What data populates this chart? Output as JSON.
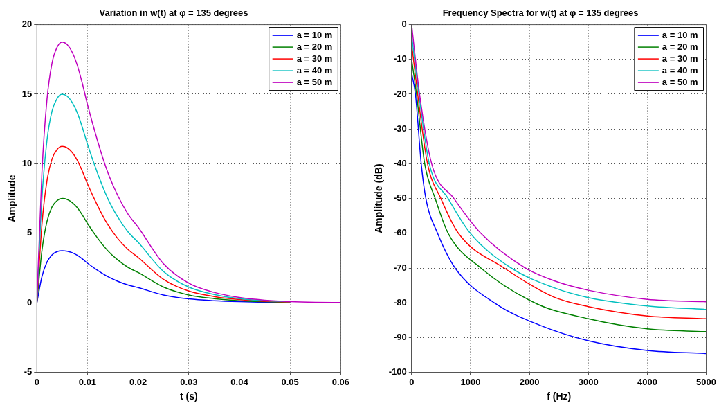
{
  "chart_data": [
    {
      "type": "line",
      "title": "Variation in w(t) at φ = 135 degrees",
      "xlabel": "t (s)",
      "ylabel": "Amplitude",
      "x": [
        0,
        0.001,
        0.002,
        0.003,
        0.004,
        0.005,
        0.006,
        0.007,
        0.008,
        0.009,
        0.01,
        0.012,
        0.014,
        0.016,
        0.018,
        0.02,
        0.025,
        0.03,
        0.035,
        0.04,
        0.045,
        0.05,
        0.055,
        0.06
      ],
      "series": [
        {
          "name": "a = 10 m",
          "color": "#0000ff",
          "values": [
            0,
            1.88,
            2.93,
            3.45,
            3.68,
            3.75,
            3.71,
            3.6,
            3.41,
            3.15,
            2.85,
            2.33,
            1.88,
            1.54,
            1.28,
            1.09,
            0.56,
            0.28,
            0.15,
            0.08,
            0.04,
            0.02,
            null,
            null
          ]
        },
        {
          "name": "a = 20 m",
          "color": "#008000",
          "values": [
            0,
            3.75,
            5.85,
            6.9,
            7.35,
            7.5,
            7.43,
            7.2,
            6.83,
            6.3,
            5.7,
            4.65,
            3.75,
            3.08,
            2.55,
            2.18,
            1.13,
            0.56,
            0.3,
            0.15,
            0.08,
            0.04,
            null,
            null
          ]
        },
        {
          "name": "a = 30 m",
          "color": "#ff0000",
          "values": [
            0,
            5.63,
            8.78,
            10.35,
            11.03,
            11.25,
            11.14,
            10.8,
            10.24,
            9.45,
            8.55,
            6.98,
            5.63,
            4.61,
            3.83,
            3.26,
            1.69,
            0.84,
            0.45,
            0.23,
            0.11,
            0.06,
            null,
            null
          ]
        },
        {
          "name": "a = 40 m",
          "color": "#00bfbf",
          "values": [
            0,
            7.5,
            11.7,
            13.8,
            14.7,
            15,
            14.85,
            14.4,
            13.65,
            12.6,
            11.4,
            9.3,
            7.5,
            6.15,
            5.1,
            4.35,
            2.25,
            1.13,
            0.6,
            0.3,
            0.15,
            0.08,
            null,
            null
          ]
        },
        {
          "name": "a = 50 m",
          "color": "#bf00bf",
          "values": [
            0,
            9.38,
            14.63,
            17.25,
            18.38,
            18.75,
            18.56,
            18,
            17.06,
            15.75,
            14.25,
            11.63,
            9.38,
            7.69,
            6.38,
            5.44,
            2.81,
            1.41,
            0.75,
            0.38,
            0.19,
            0.09,
            0.04,
            0.02
          ]
        }
      ],
      "xlim": [
        0,
        0.06
      ],
      "xticks": [
        0,
        0.01,
        0.02,
        0.03,
        0.04,
        0.05,
        0.06
      ],
      "ylim": [
        -5,
        20
      ],
      "yticks": [
        -5,
        0,
        5,
        10,
        15,
        20
      ],
      "grid": true,
      "legend": "top right",
      "line_style": "solid",
      "marker": "none"
    },
    {
      "type": "line",
      "title": "Frequency Spectra for w(t) at φ = 135 degrees",
      "xlabel": "f (Hz)",
      "ylabel": "Amplitude (dB)",
      "series": [
        {
          "name": "a = 10 m",
          "color": "#0000ff",
          "x": [
            0,
            65,
            163,
            242,
            440,
            738,
            1430,
            2170,
            3000,
            4000,
            5000
          ],
          "values": [
            -14,
            -20,
            -40,
            -50,
            -60,
            -70,
            -80.3,
            -86.4,
            -90.9,
            -93.7,
            -94.6
          ]
        },
        {
          "name": "a = 20 m",
          "color": "#008000",
          "x": [
            0,
            83,
            222,
            400,
            620,
            1175,
            2127,
            3000,
            4000,
            5000
          ],
          "values": [
            -10,
            -20,
            -40,
            -50,
            -60,
            -70,
            -80.3,
            -84.6,
            -87.5,
            -88.3
          ]
        },
        {
          "name": "a = 30 m",
          "color": "#ff0000",
          "x": [
            0,
            103,
            270,
            496,
            794,
            1571,
            2405,
            3000,
            4000,
            5000
          ],
          "values": [
            -5.5,
            -20,
            -40,
            -50,
            -60,
            -70,
            -78.3,
            -81.1,
            -83.8,
            -84.6
          ]
        },
        {
          "name": "a = 40 m",
          "color": "#00bfbf",
          "x": [
            0,
            123,
            300,
            620,
            996,
            1690,
            2405,
            3000,
            4000,
            5000
          ],
          "values": [
            -3,
            -20,
            -40,
            -50,
            -60,
            -70,
            -75.6,
            -78.5,
            -80.9,
            -81.9
          ]
        },
        {
          "name": "a = 50 m",
          "color": "#bf00bf",
          "x": [
            0,
            135,
            340,
            718,
            1175,
            1929,
            2405,
            3000,
            4000,
            5000
          ],
          "values": [
            0,
            -20,
            -40,
            -50,
            -60,
            -70,
            -73.6,
            -76.4,
            -79,
            -79.7
          ]
        }
      ],
      "xlim": [
        0,
        5000
      ],
      "xticks": [
        0,
        1000,
        2000,
        3000,
        4000,
        5000
      ],
      "ylim": [
        -100,
        0
      ],
      "yticks": [
        -100,
        -90,
        -80,
        -70,
        -60,
        -50,
        -40,
        -30,
        -20,
        -10,
        0
      ],
      "grid": true,
      "legend": "top right",
      "line_style": "solid",
      "marker": "none"
    }
  ]
}
